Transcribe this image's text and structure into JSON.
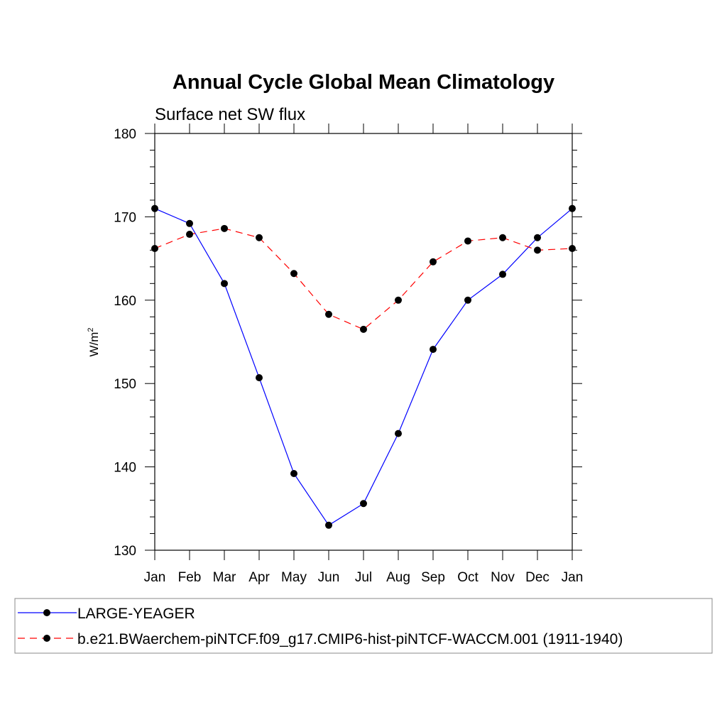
{
  "chart_data": {
    "type": "line",
    "title": "Annual Cycle Global Mean Climatology",
    "subtitle": "Surface net SW flux",
    "ylabel_base": "W/m",
    "ylabel_sup": "2",
    "xlabel": "",
    "categories": [
      "Jan",
      "Feb",
      "Mar",
      "Apr",
      "May",
      "Jun",
      "Jul",
      "Aug",
      "Sep",
      "Oct",
      "Nov",
      "Dec",
      "Jan"
    ],
    "ylim": [
      130,
      180
    ],
    "yticks": [
      130,
      140,
      150,
      160,
      170,
      180
    ],
    "grid": false,
    "legend_position": "bottom",
    "series": [
      {
        "name": "LARGE-YEAGER",
        "color": "#0000ff",
        "dash": "solid",
        "marker": "filled-circle",
        "values": [
          171.0,
          169.2,
          162.0,
          150.7,
          139.2,
          133.0,
          135.6,
          144.0,
          154.1,
          160.0,
          163.1,
          167.5,
          171.0
        ]
      },
      {
        "name": "b.e21.BWaerchem-piNTCF.f09_g17.CMIP6-hist-piNTCF-WACCM.001 (1911-1940)",
        "color": "#ff0000",
        "dash": "dashed",
        "marker": "filled-circle",
        "values": [
          166.2,
          167.9,
          168.6,
          167.5,
          163.2,
          158.3,
          156.5,
          160.0,
          164.6,
          167.1,
          167.5,
          166.0,
          166.2
        ]
      }
    ]
  }
}
